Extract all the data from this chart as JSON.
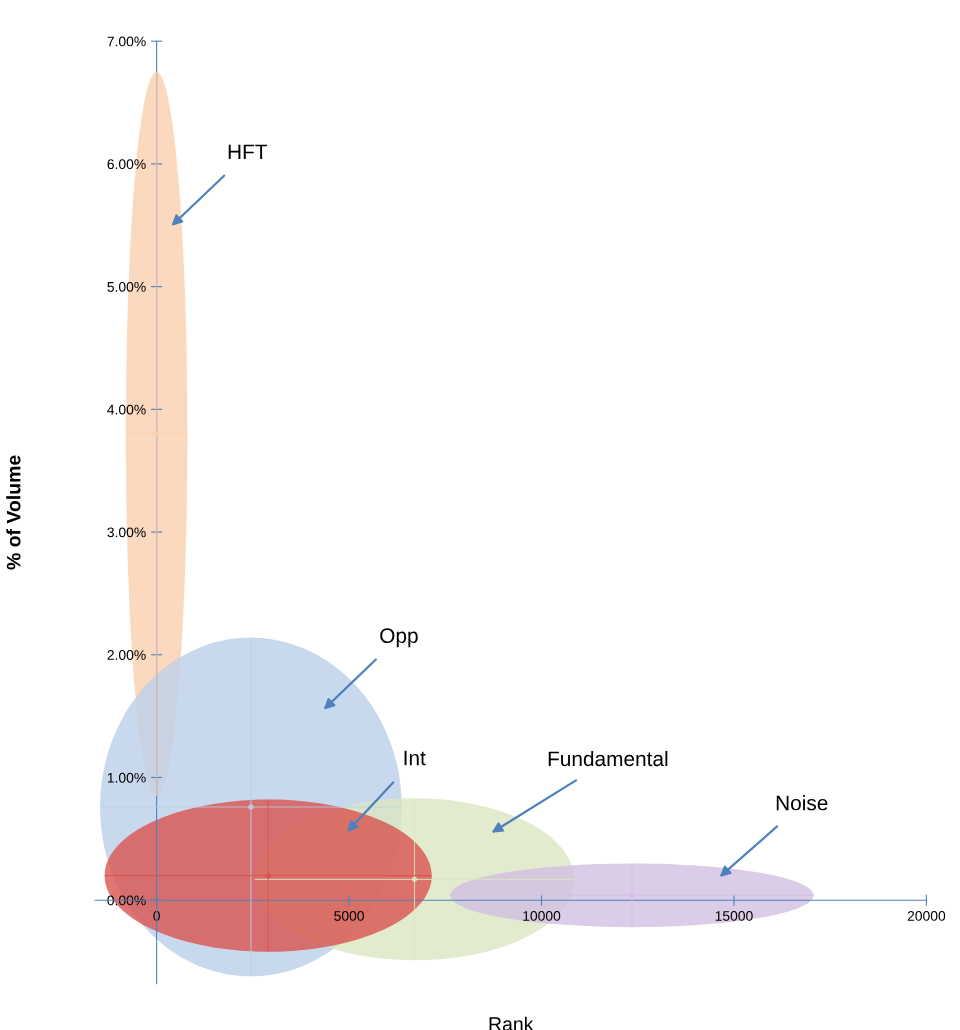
{
  "chart_data": {
    "type": "scatter",
    "xlabel": "Rank",
    "ylabel": "% of Volume",
    "xlim": [
      -1600,
      20000
    ],
    "xticks": [
      0,
      5000,
      10000,
      15000,
      20000
    ],
    "ylim": [
      -0.68,
      7.0
    ],
    "yticks": [
      {
        "value": 0,
        "label": "0.00%"
      },
      {
        "value": 1,
        "label": "1.00%"
      },
      {
        "value": 2,
        "label": "2.00%"
      },
      {
        "value": 3,
        "label": "3.00%"
      },
      {
        "value": 4,
        "label": "4.00%"
      },
      {
        "value": 5,
        "label": "5.00%"
      },
      {
        "value": 6,
        "label": "6.00%"
      },
      {
        "value": 7,
        "label": "7.00%"
      }
    ],
    "grid": false,
    "series": [
      {
        "color": "#f9cfae",
        "x": [
          0
        ],
        "values": [
          3.8
        ],
        "xerrors": [
          800
        ],
        "errors": [
          2.95
        ]
      },
      {
        "color": "#bcd0e8",
        "x": [
          2450
        ],
        "values": [
          0.76
        ],
        "xerrors": [
          3920
        ],
        "errors": [
          1.38
        ]
      },
      {
        "color": "#dbe6c2",
        "x": [
          6700
        ],
        "values": [
          0.17
        ],
        "xerrors": [
          4150
        ],
        "errors": [
          0.66
        ]
      },
      {
        "color": "#d9534f",
        "x": [
          2900
        ],
        "values": [
          0.2
        ],
        "xerrors": [
          4250
        ],
        "errors": [
          0.62
        ]
      },
      {
        "color": "#d2bfe2",
        "x": [
          12350
        ],
        "values": [
          0.04
        ],
        "xerrors": [
          4720
        ],
        "errors": [
          0.26
        ]
      }
    ],
    "annotations": [
      "HFT",
      "Opp",
      "Fundamental",
      "Int",
      "Noise"
    ]
  }
}
